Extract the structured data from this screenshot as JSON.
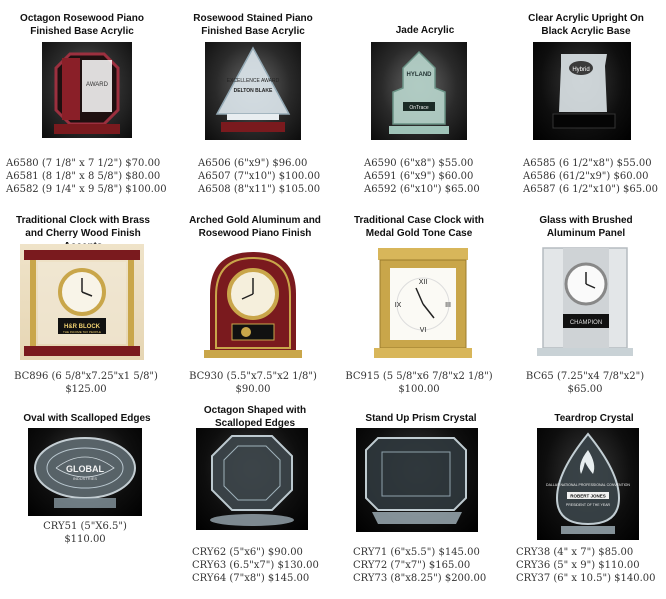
{
  "products": [
    {
      "title": "Octagon Rosewood Piano Finished Base Acrylic",
      "lines": [
        "A6580 (7 1/8\" x 7 1/2\") $70.00",
        "A6581 (8 1/8\" x 8 5/8\") $80.00",
        "A6582 (9 1/4\" x 9 5/8\") $100.00"
      ]
    },
    {
      "title": "Rosewood Stained Piano Finished Base Acrylic",
      "lines": [
        "A6506 (6\"x9\") $96.00",
        "A6507 (7\"x10\") $100.00",
        "A6508 (8\"x11\") $105.00"
      ]
    },
    {
      "title": "Jade Acrylic",
      "lines": [
        "A6590 (6\"x8\") $55.00",
        "A6591 (6\"x9\") $60.00",
        "A6592 (6\"x10\") $65.00"
      ]
    },
    {
      "title": "Clear Acrylic Upright On Black Acrylic Base",
      "lines": [
        "A6585 (6 1/2\"x8\") $55.00",
        "A6586 (61/2\"x9\") $60.00",
        "A6587 (6 1/2\"x10\") $65.00"
      ]
    },
    {
      "title": "Traditional Clock with Brass and Cherry Wood Finish Accents",
      "lines": [
        "BC896 (6 5/8\"x7.25\"x1 5/8\")",
        "$125.00"
      ]
    },
    {
      "title": "Arched Gold Aluminum and Rosewood Piano Finish",
      "lines": [
        "BC930 (5.5\"x7.5\"x2 1/8\")",
        "$90.00"
      ]
    },
    {
      "title": "Traditional Case Clock with Medal Gold Tone Case",
      "lines": [
        "BC915 (5 5/8\"x6 7/8\"x2 1/8\")",
        "$100.00"
      ]
    },
    {
      "title": "Glass with Brushed Aluminum Panel",
      "lines": [
        "BC65 (7.25\"x4 7/8\"x2\")",
        "$65.00"
      ]
    },
    {
      "title": "Oval with Scalloped Edges",
      "lines": [
        "CRY51 (5\"X6.5\")",
        "$110.00"
      ]
    },
    {
      "title": "Octagon Shaped with Scalloped Edges",
      "lines": [
        "CRY62 (5\"x6\") $90.00",
        "CRY63 (6.5\"x7\") $130.00",
        "CRY64 (7\"x8\") $145.00"
      ]
    },
    {
      "title": "Stand Up Prism Crystal",
      "lines": [
        "CRY71 (6\"x5.5\") $145.00",
        "CRY72 (7\"x7\") $165.00",
        "CRY73 (8\"x8.25\") $200.00"
      ]
    },
    {
      "title": "Teardrop Crystal",
      "lines": [
        "CRY38 (4\" x 7\") $85.00",
        "CRY36 (5\" x 9\") $110.00",
        "CRY37 (6\" x 10.5\") $140.00"
      ]
    }
  ],
  "engravings": {
    "a6580": "AWARD",
    "a6506": "EXCELLENCE AWARD",
    "a6506_name": "DELTON BLAKE",
    "a6590": "HYLAND",
    "a6590_sub": "OnTrace",
    "a6585": "Hybrid",
    "bc896_plate": "H&R BLOCK",
    "bc896_sub": "THE INCOME TAX PEOPLE",
    "cry51": "GLOBAL",
    "cry51_sub": "INDUSTRIES",
    "cry38_top": "DALLAS NATIONAL PROFESSIONAL CONVENTION",
    "cry38_name": "ROBERT JONES",
    "cry38_sub": "PRESIDENT OF THE YEAR",
    "bc65_plate": "CHAMPION"
  },
  "colors": {
    "rosewood": "#7a1a1e",
    "gold": "#c9a64a",
    "jade": "#9fc3b8",
    "glass": "#cfe0ea"
  }
}
